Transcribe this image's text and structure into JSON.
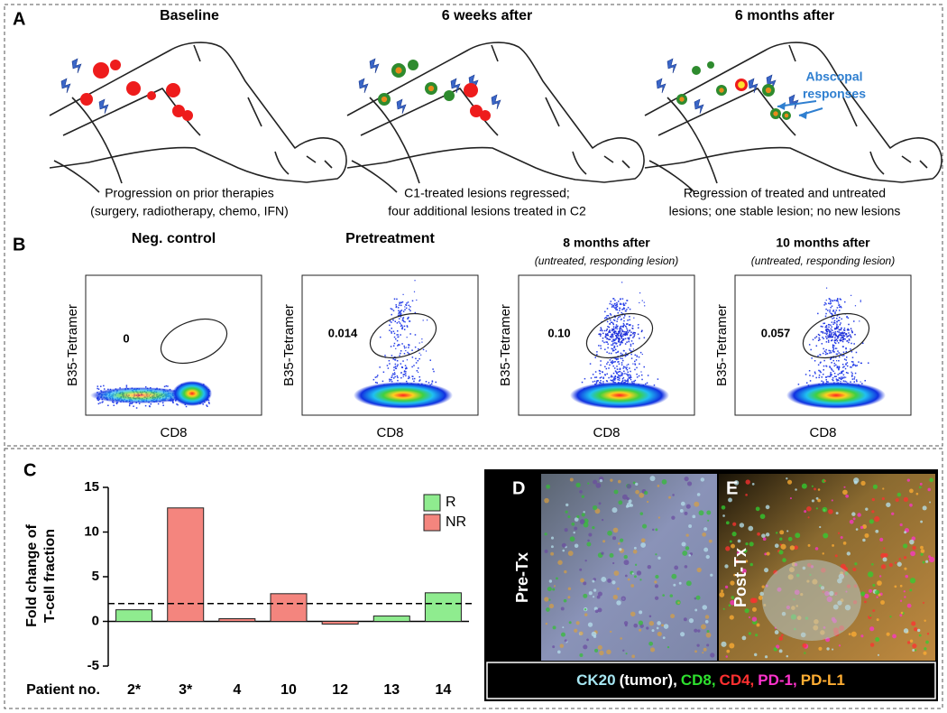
{
  "panel_a": {
    "label": "A",
    "stages": [
      {
        "title": "Baseline",
        "caption": [
          "Progression on prior therapies",
          "(surgery, radiotherapy, chemo, IFN)"
        ]
      },
      {
        "title": "6 weeks after",
        "caption": [
          "C1-treated lesions regressed;",
          "four additional lesions treated in C2"
        ]
      },
      {
        "title": "6 months after",
        "caption": [
          "Regression of treated and untreated",
          "lesions; one stable lesion; no new lesions"
        ]
      }
    ],
    "annotation": [
      "Abscopal",
      "responses"
    ]
  },
  "panel_b": {
    "label": "B",
    "y_label": "B35-Tetramer",
    "x_label": "CD8",
    "plots": [
      {
        "title": "Neg. control",
        "gate": "0"
      },
      {
        "title": "Pretreatment",
        "gate": "0.014"
      },
      {
        "title": "8 months after",
        "subtitle": "(untreated, responding lesion)",
        "gate": "0.10"
      },
      {
        "title": "10 months after",
        "subtitle": "(untreated, responding lesion)",
        "gate": "0.057"
      }
    ]
  },
  "chart_data": {
    "type": "bar",
    "label": "C",
    "ylabel": [
      "Fold change of",
      "T-cell fraction"
    ],
    "xlabel": "Patient no.",
    "categories": [
      "2*",
      "3*",
      "4",
      "10",
      "12",
      "13",
      "14"
    ],
    "series": [
      {
        "name": "R",
        "color": "#8fec8f",
        "values": [
          1.3,
          null,
          null,
          null,
          null,
          0.6,
          3.2
        ]
      },
      {
        "name": "NR",
        "color": "#f4857e",
        "values": [
          null,
          12.7,
          0.3,
          3.1,
          -0.3,
          null,
          null
        ]
      }
    ],
    "ylim": [
      -5,
      15
    ],
    "yticks": [
      -5,
      0,
      5,
      10,
      15
    ],
    "reference_line": 2
  },
  "panel_d": {
    "label": "D",
    "text": "Pre-Tx"
  },
  "panel_e": {
    "label": "E",
    "text": "Post-Tx"
  },
  "stain_legend": [
    {
      "text": "CK20",
      "color": "#a6e6f2"
    },
    {
      "text": "(tumor),",
      "color": "#ffffff"
    },
    {
      "text": "CD8,",
      "color": "#2ee02e"
    },
    {
      "text": "CD4,",
      "color": "#ff3030"
    },
    {
      "text": "PD-1,",
      "color": "#ff33cc"
    },
    {
      "text": "PD-L1",
      "color": "#ffae33"
    }
  ]
}
